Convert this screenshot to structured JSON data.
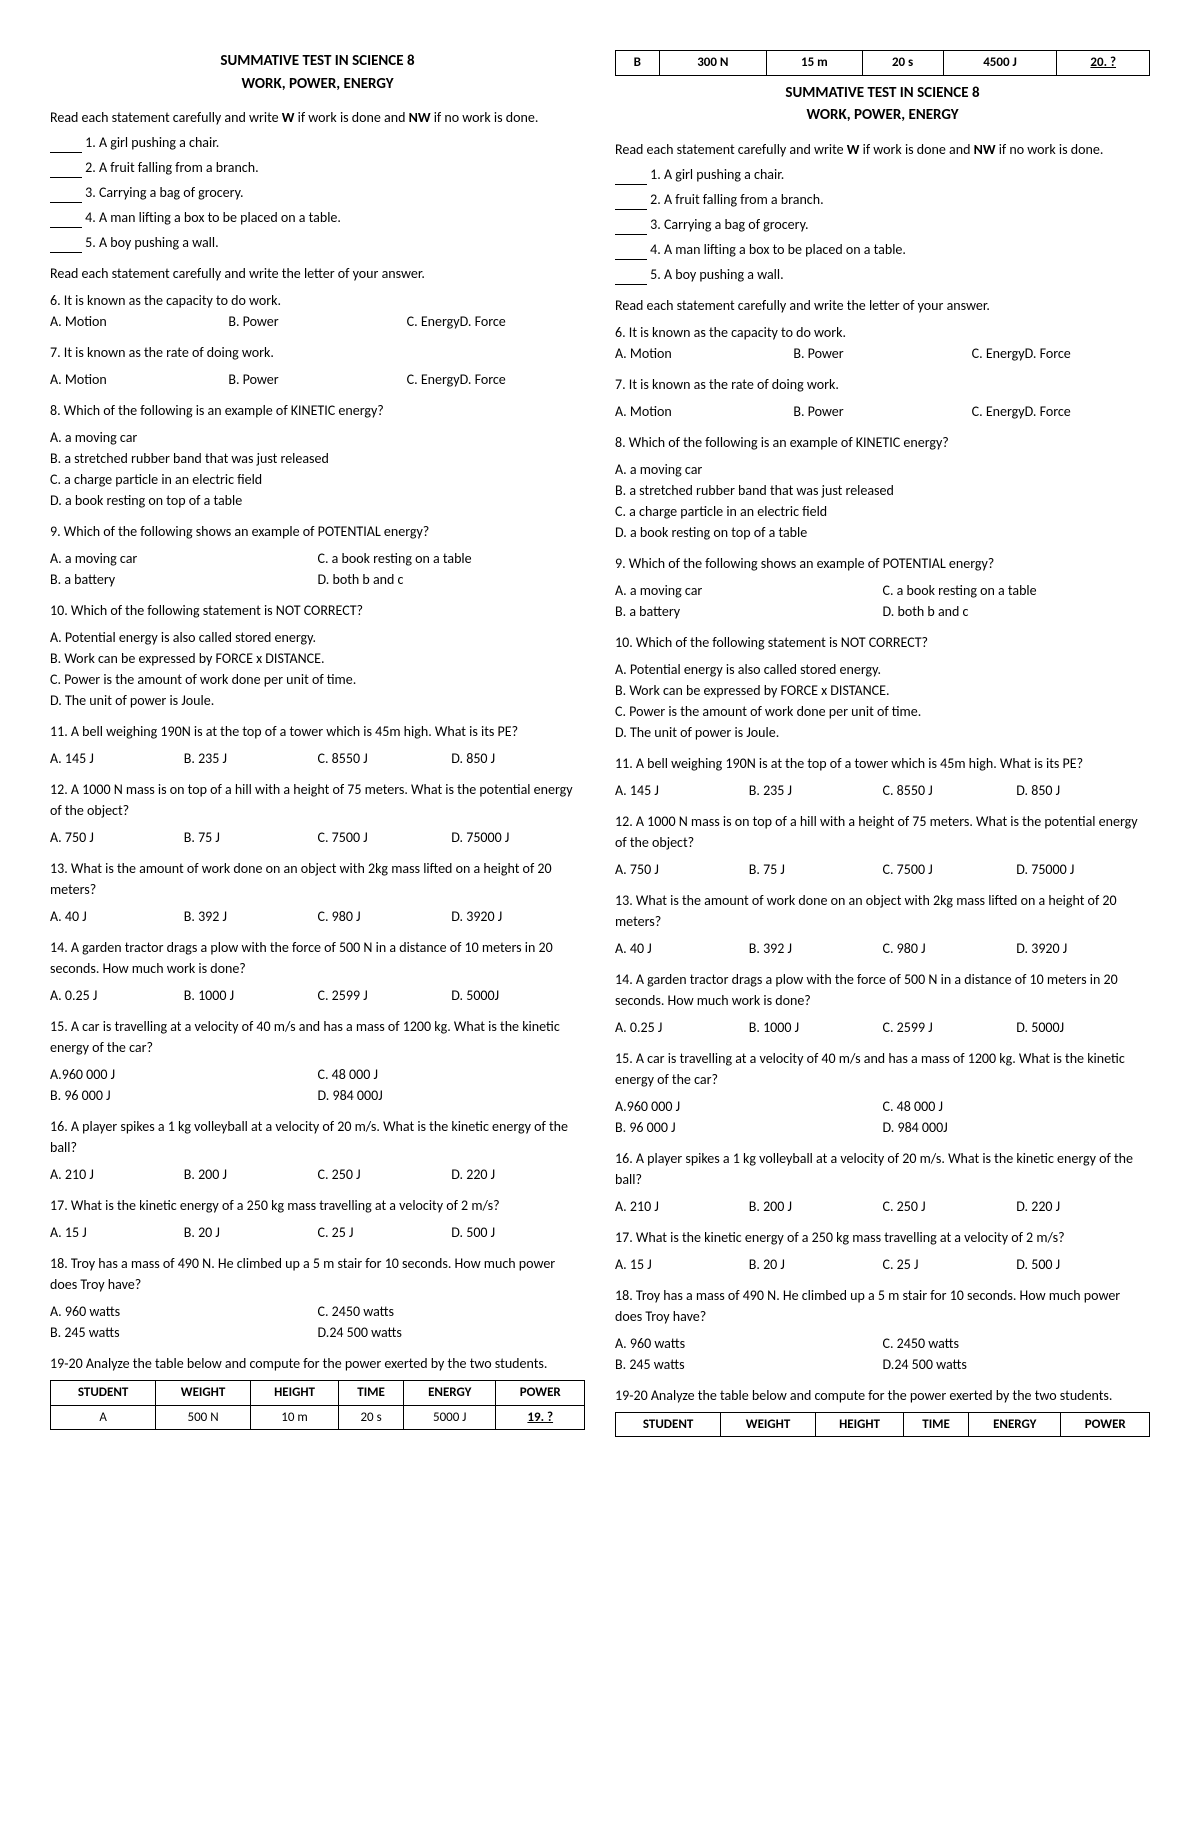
{
  "title": "SUMMATIVE TEST IN SCIENCE 8",
  "subtitle": "WORK, POWER, ENERGY",
  "intro": "Read each statement carefully and write ",
  "intro_b1": "W",
  "intro_mid": " if work is done and ",
  "intro_b2": "NW",
  "intro_end": " if no work is done.",
  "s1": " 1. A girl pushing a chair.",
  "s2": " 2. A fruit falling from a branch.",
  "s3": " 3. Carrying a bag of grocery.",
  "s4": " 4. A man lifting a box to be placed on a table.",
  "s5": " 5. A boy pushing a wall.",
  "intro2": "Read each statement carefully and write the letter of your answer.",
  "q6": "6. It is known as the capacity to do work.",
  "q6a": "A. Motion",
  "q6b": "B. Power",
  "q6c": "C. Energy",
  "q6d": "D. Force",
  "q7": "7. It is known as the rate of doing work.",
  "q7a": "A. Motion",
  "q7b": "B. Power",
  "q7c": "C. Energy",
  "q7d": "D. Force",
  "q8": "8. Which of the following is an example of KINETIC energy?",
  "q8a": "A. a moving car",
  "q8b": "B. a stretched rubber band that was just released",
  "q8c": "C. a charge particle in an electric field",
  "q8d": "D. a book resting on top of a table",
  "q9": "9. Which of the following shows an example of POTENTIAL energy?",
  "q9a": "A. a moving car",
  "q9c": "C. a book resting on a table",
  "q9b": "B. a battery",
  "q9d": "D. both b and c",
  "q10": "10. Which of the following statement is NOT CORRECT?",
  "q10a": "A. Potential energy is also called stored energy.",
  "q10b": "B. Work can be expressed by FORCE x DISTANCE.",
  "q10c": "C. Power is the amount of work done per unit of time.",
  "q10d": "D. The unit of power is Joule.",
  "q11": "11. A bell weighing 190N is at the top of a tower which is 45m high. What is its PE?",
  "q11a": "A.  145 J",
  "q11b": "B. 235 J",
  "q11c": "C. 8550 J",
  "q11d": "D. 850 J",
  "q12": "12.  A 1000 N mass is on top of a hill with a height of 75 meters. What is the potential energy of the object?",
  "q12a": "A.  750 J",
  "q12b": "B. 75 J",
  "q12c": "C. 7500 J",
  "q12d": "D. 75000 J",
  "q13": "13. What is the amount of work done on an object with 2kg mass lifted on a height of 20 meters?",
  "q13a": "A.  40 J",
  "q13b": "B. 392 J",
  "q13c": "C. 980 J",
  "q13d": "D. 3920 J",
  "q14": "14. A garden tractor drags a plow with the force of 500 N in a distance of 10 meters in 20 seconds. How much work is done?",
  "q14a": "A. 0.25 J",
  "q14b": "B. 1000 J",
  "q14c": "C. 2599 J",
  "q14d": "D. 5000J",
  "q15": "15. A car is travelling at a velocity of 40 m/s and has a mass of 1200 kg.  What is the kinetic energy of the car?",
  "q15a": "A.960 000 J",
  "q15c": "C. 48 000 J",
  "q15b": "B. 96 000 J",
  "q15d": "D. 984 000J",
  "q16": "16. A player spikes a 1 kg volleyball at a velocity of 20 m/s. What is the kinetic energy of the ball?",
  "q16a": "A. 210 J",
  "q16b": "B. 200 J",
  "q16c": "C. 250 J",
  "q16d": "D. 220 J",
  "q17": "17.  What is the kinetic energy of a 250 kg mass travelling at a velocity of 2 m/s?",
  "q17a": "A. 15 J",
  "q17b": "B. 20 J",
  "q17c": "C. 25 J",
  "q17d": "D. 500 J",
  "q18": "18. Troy has a mass of 490 N. He climbed up a 5 m stair for 10 seconds. How much power does Troy have?",
  "q18a": "A. 960  watts",
  "q18c": "C. 2450 watts",
  "q18b": "B. 245 watts",
  "q18d": "D.24 500 watts",
  "q1920": "19-20 Analyze the table below and compute for the power exerted by the two students.",
  "th1": "STUDENT",
  "th2": "WEIGHT",
  "th3": "HEIGHT",
  "th4": "TIME",
  "th5": "ENERGY",
  "th6": "POWER",
  "rowA": {
    "s": "A",
    "w": "500 N",
    "h": "10 m",
    "t": "20 s",
    "e": "5000 J",
    "p": "19.   ?"
  },
  "rowB": {
    "s": "B",
    "w": "300 N",
    "h": "15 m",
    "t": "20 s",
    "e": "4500 J",
    "p": "20.   ?"
  }
}
